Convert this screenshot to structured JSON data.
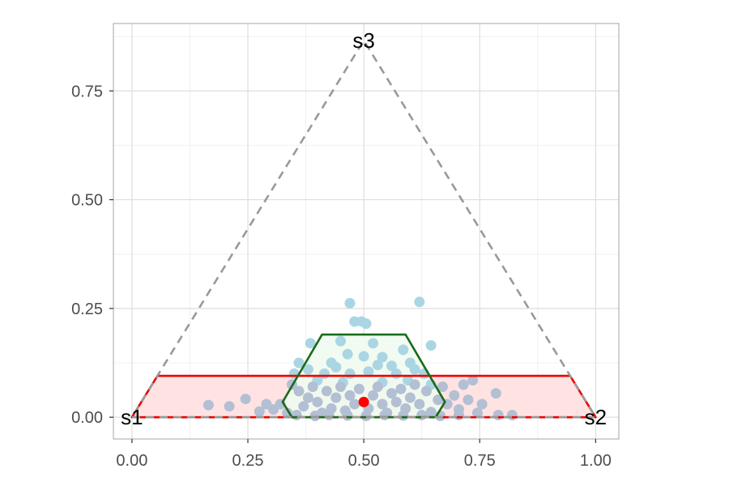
{
  "chart_data": {
    "type": "scatter",
    "title": "",
    "xlabel": "",
    "ylabel": "",
    "xlim": [
      -0.04,
      1.05
    ],
    "ylim": [
      -0.05,
      0.905
    ],
    "xticks": [
      {
        "value": 0,
        "label": "0.00"
      },
      {
        "value": 0.25,
        "label": "0.25"
      },
      {
        "value": 0.5,
        "label": "0.50"
      },
      {
        "value": 0.75,
        "label": "0.75"
      },
      {
        "value": 1,
        "label": "1.00"
      }
    ],
    "yticks": [
      {
        "value": 0,
        "label": "0.00"
      },
      {
        "value": 0.25,
        "label": "0.25"
      },
      {
        "value": 0.5,
        "label": "0.50"
      },
      {
        "value": 0.75,
        "label": "0.75"
      }
    ],
    "grid": true,
    "simplex": {
      "vertices": [
        {
          "label": "s1",
          "x": 0,
          "y": 0
        },
        {
          "label": "s2",
          "x": 1,
          "y": 0
        },
        {
          "label": "s3",
          "x": 0.5,
          "y": 0.866
        }
      ],
      "color": "#999999",
      "style": "dashed"
    },
    "regions": [
      {
        "name": "red-region",
        "stroke": "#ee0000",
        "fill": "#ffe0e0",
        "points": [
          [
            0,
            0
          ],
          [
            0.055,
            0.095
          ],
          [
            0.945,
            0.095
          ],
          [
            1,
            0
          ]
        ]
      },
      {
        "name": "green-region",
        "stroke": "#1a6b1a",
        "fill": "#f0fbf0",
        "points": [
          [
            0.325,
            0.035
          ],
          [
            0.41,
            0.19
          ],
          [
            0.59,
            0.19
          ],
          [
            0.675,
            0.035
          ],
          [
            0.655,
            0
          ],
          [
            0.345,
            0
          ]
        ]
      }
    ],
    "series": [
      {
        "color": "#aad6e3",
        "points": [
          [
            0.47,
            0.262
          ],
          [
            0.62,
            0.265
          ],
          [
            0.495,
            0.22
          ],
          [
            0.505,
            0.215
          ],
          [
            0.48,
            0.22
          ],
          [
            0.645,
            0.165
          ],
          [
            0.385,
            0.17
          ],
          [
            0.45,
            0.175
          ],
          [
            0.52,
            0.17
          ],
          [
            0.585,
            0.155
          ],
          [
            0.465,
            0.145
          ],
          [
            0.5,
            0.14
          ],
          [
            0.54,
            0.138
          ],
          [
            0.6,
            0.125
          ],
          [
            0.36,
            0.125
          ],
          [
            0.43,
            0.125
          ],
          [
            0.53,
            0.12
          ],
          [
            0.56,
            0.118
          ],
          [
            0.38,
            0.11
          ],
          [
            0.44,
            0.115
          ],
          [
            0.61,
            0.11
          ],
          [
            0.63,
            0.1
          ],
          [
            0.35,
            0.1
          ],
          [
            0.415,
            0.1
          ],
          [
            0.47,
            0.1
          ],
          [
            0.51,
            0.105
          ],
          [
            0.57,
            0.1
          ],
          [
            0.4,
            0.085
          ],
          [
            0.455,
            0.08
          ],
          [
            0.54,
            0.08
          ],
          [
            0.595,
            0.085
          ],
          [
            0.645,
            0.075
          ]
        ]
      },
      {
        "color": "#b3bfd3",
        "points": [
          [
            0.165,
            0.028
          ],
          [
            0.21,
            0.025
          ],
          [
            0.245,
            0.042
          ],
          [
            0.275,
            0.013
          ],
          [
            0.29,
            0.03
          ],
          [
            0.305,
            0.018
          ],
          [
            0.32,
            0.03
          ],
          [
            0.335,
            0.01
          ],
          [
            0.345,
            0.075
          ],
          [
            0.36,
            0.06
          ],
          [
            0.37,
            0.025
          ],
          [
            0.38,
            0.045
          ],
          [
            0.39,
            0.07
          ],
          [
            0.4,
            0.035
          ],
          [
            0.41,
            0.01
          ],
          [
            0.42,
            0.06
          ],
          [
            0.43,
            0.02
          ],
          [
            0.44,
            0.045
          ],
          [
            0.45,
            0.07
          ],
          [
            0.46,
            0.015
          ],
          [
            0.47,
            0.05
          ],
          [
            0.48,
            0.03
          ],
          [
            0.49,
            0.065
          ],
          [
            0.51,
            0.02
          ],
          [
            0.52,
            0.05
          ],
          [
            0.53,
            0.07
          ],
          [
            0.54,
            0.03
          ],
          [
            0.55,
            0.01
          ],
          [
            0.56,
            0.055
          ],
          [
            0.57,
            0.035
          ],
          [
            0.58,
            0.065
          ],
          [
            0.59,
            0.02
          ],
          [
            0.6,
            0.045
          ],
          [
            0.61,
            0.075
          ],
          [
            0.62,
            0.03
          ],
          [
            0.635,
            0.06
          ],
          [
            0.645,
            0.012
          ],
          [
            0.66,
            0.04
          ],
          [
            0.67,
            0.07
          ],
          [
            0.68,
            0.03
          ],
          [
            0.695,
            0.05
          ],
          [
            0.705,
            0.018
          ],
          [
            0.715,
            0.075
          ],
          [
            0.725,
            0.04
          ],
          [
            0.735,
            0.085
          ],
          [
            0.745,
            0.01
          ],
          [
            0.755,
            0.03
          ],
          [
            0.785,
            0.055
          ],
          [
            0.79,
            0.005
          ],
          [
            0.82,
            0.005
          ],
          [
            0.355,
            0.005
          ],
          [
            0.395,
            0.003
          ],
          [
            0.425,
            0.005
          ],
          [
            0.465,
            0.004
          ],
          [
            0.505,
            0.003
          ],
          [
            0.545,
            0.005
          ],
          [
            0.585,
            0.004
          ],
          [
            0.625,
            0.005
          ],
          [
            0.665,
            0.003
          ],
          [
            0.705,
            0.005
          ]
        ]
      }
    ],
    "highlight_point": {
      "x": 0.5,
      "y": 0.035,
      "color": "#ff0000"
    }
  }
}
